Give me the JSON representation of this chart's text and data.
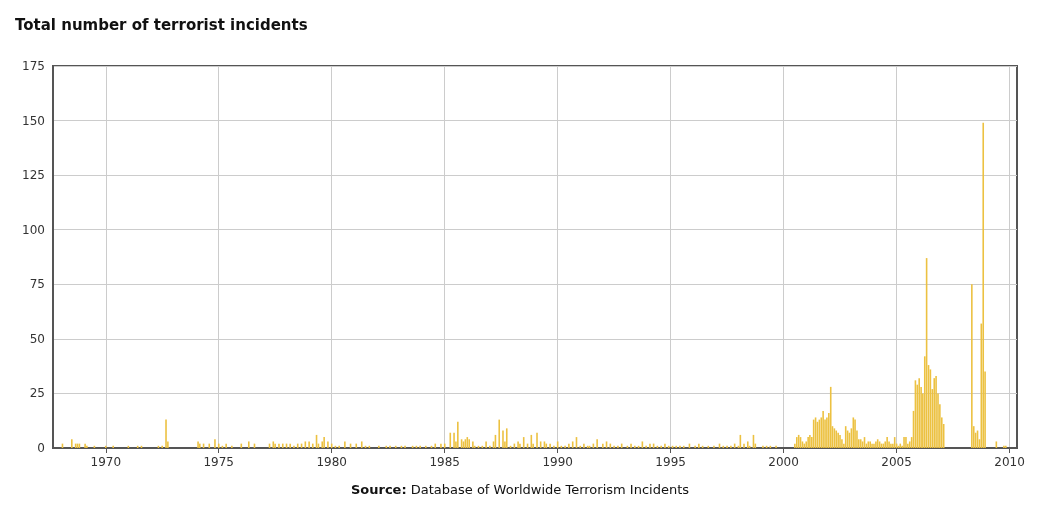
{
  "chart_data": {
    "type": "bar",
    "title": "Total number of terrorist incidents",
    "annotations": [
      "Source: Database of Worldwide Terrorism Incidents"
    ],
    "x": [
      "1968-02",
      "1968-07",
      "1968-09",
      "1968-10",
      "1968-11",
      "1969-02",
      "1969-03",
      "1969-07",
      "1970-01",
      "1970-05",
      "1971-01",
      "1971-06",
      "1971-08",
      "1972-05",
      "1972-07",
      "1972-09",
      "1972-10",
      "1974-02",
      "1974-03",
      "1974-05",
      "1974-08",
      "1974-11",
      "1975-01",
      "1975-03",
      "1975-05",
      "1975-08",
      "1976-01",
      "1976-05",
      "1976-08",
      "1977-04",
      "1977-06",
      "1977-07",
      "1977-09",
      "1977-11",
      "1978-01",
      "1978-03",
      "1978-05",
      "1978-07",
      "1978-09",
      "1978-11",
      "1979-01",
      "1979-03",
      "1979-05",
      "1979-06",
      "1979-08",
      "1979-09",
      "1979-11",
      "1980-01",
      "1980-03",
      "1980-05",
      "1980-08",
      "1980-11",
      "1981-02",
      "1981-05",
      "1981-07",
      "1981-09",
      "1982-02",
      "1982-06",
      "1982-08",
      "1982-11",
      "1983-02",
      "1983-04",
      "1983-08",
      "1983-10",
      "1983-12",
      "1984-03",
      "1984-06",
      "1984-08",
      "1984-11",
      "1985-01",
      "1985-04",
      "1985-06",
      "1985-07",
      "1985-08",
      "1985-10",
      "1985-11",
      "1985-12",
      "1986-01",
      "1986-02",
      "1986-04",
      "1986-05",
      "1986-07",
      "1986-09",
      "1986-11",
      "1987-01",
      "1987-03",
      "1987-04",
      "1987-06",
      "1987-08",
      "1987-09",
      "1987-10",
      "1987-12",
      "1988-02",
      "1988-04",
      "1988-05",
      "1988-07",
      "1988-09",
      "1988-11",
      "1988-12",
      "1989-02",
      "1989-04",
      "1989-06",
      "1989-07",
      "1989-09",
      "1989-11",
      "1990-01",
      "1990-03",
      "1990-05",
      "1990-07",
      "1990-09",
      "1990-11",
      "1991-01",
      "1991-03",
      "1991-05",
      "1991-06",
      "1991-08",
      "1991-10",
      "1992-01",
      "1992-03",
      "1992-05",
      "1992-07",
      "1992-09",
      "1992-11",
      "1993-02",
      "1993-04",
      "1993-06",
      "1993-08",
      "1993-10",
      "1993-12",
      "1994-02",
      "1994-04",
      "1994-06",
      "1994-08",
      "1994-10",
      "1994-12",
      "1995-02",
      "1995-04",
      "1995-06",
      "1995-08",
      "1995-11",
      "1996-02",
      "1996-04",
      "1996-06",
      "1996-09",
      "1996-12",
      "1997-03",
      "1997-05",
      "1997-07",
      "1997-09",
      "1997-11",
      "1998-01",
      "1998-02",
      "1998-04",
      "1998-06",
      "1998-07",
      "1998-09",
      "1998-10",
      "1999-02",
      "1999-04",
      "1999-06",
      "1999-09",
      "2000-07",
      "2000-08",
      "2000-09",
      "2000-10",
      "2000-11",
      "2000-12",
      "2001-01",
      "2001-02",
      "2001-03",
      "2001-04",
      "2001-05",
      "2001-06",
      "2001-07",
      "2001-08",
      "2001-09",
      "2001-10",
      "2001-11",
      "2001-12",
      "2002-01",
      "2002-02",
      "2002-03",
      "2002-04",
      "2002-05",
      "2002-06",
      "2002-07",
      "2002-08",
      "2002-09",
      "2002-10",
      "2002-11",
      "2002-12",
      "2003-01",
      "2003-02",
      "2003-03",
      "2003-04",
      "2003-05",
      "2003-06",
      "2003-07",
      "2003-08",
      "2003-09",
      "2003-10",
      "2003-11",
      "2003-12",
      "2004-01",
      "2004-02",
      "2004-03",
      "2004-04",
      "2004-05",
      "2004-06",
      "2004-07",
      "2004-08",
      "2004-09",
      "2004-10",
      "2004-11",
      "2004-12",
      "2005-01",
      "2005-02",
      "2005-03",
      "2005-04",
      "2005-05",
      "2005-06",
      "2005-07",
      "2005-08",
      "2005-09",
      "2005-10",
      "2005-11",
      "2005-12",
      "2006-01",
      "2006-02",
      "2006-03",
      "2006-04",
      "2006-05",
      "2006-06",
      "2006-07",
      "2006-08",
      "2006-09",
      "2006-10",
      "2006-11",
      "2006-12",
      "2007-01",
      "2007-02",
      "2008-05",
      "2008-06",
      "2008-07",
      "2008-08",
      "2008-09",
      "2008-10",
      "2008-11",
      "2008-12",
      "2009-06",
      "2009-10",
      "2009-11"
    ],
    "values": [
      2,
      4,
      2,
      2,
      2,
      2,
      1,
      1,
      1,
      1,
      1,
      1,
      1,
      1,
      1,
      13,
      3,
      3,
      2,
      2,
      2,
      4,
      2,
      1,
      2,
      1,
      2,
      3,
      2,
      2,
      3,
      2,
      2,
      2,
      2,
      2,
      1,
      2,
      2,
      3,
      3,
      2,
      6,
      2,
      3,
      5,
      3,
      2,
      1,
      1,
      3,
      2,
      2,
      3,
      1,
      1,
      1,
      1,
      1,
      1,
      1,
      1,
      1,
      1,
      1,
      1,
      1,
      2,
      2,
      2,
      7,
      7,
      3,
      12,
      4,
      3,
      4,
      5,
      4,
      3,
      1,
      1,
      1,
      3,
      1,
      3,
      6,
      13,
      8,
      3,
      9,
      1,
      2,
      3,
      2,
      5,
      2,
      6,
      2,
      7,
      3,
      3,
      2,
      2,
      1,
      3,
      1,
      1,
      2,
      3,
      5,
      1,
      2,
      1,
      1,
      2,
      4,
      2,
      3,
      2,
      1,
      1,
      2,
      1,
      2,
      1,
      1,
      3,
      1,
      2,
      2,
      1,
      1,
      2,
      1,
      1,
      1,
      1,
      1,
      2,
      1,
      2,
      1,
      1,
      1,
      2,
      1,
      1,
      1,
      2,
      1,
      6,
      2,
      3,
      1,
      6,
      2,
      1,
      1,
      1,
      1,
      2,
      5,
      6,
      5,
      3,
      2,
      3,
      5,
      6,
      5,
      13,
      14,
      12,
      13,
      14,
      17,
      13,
      14,
      16,
      28,
      10,
      9,
      8,
      7,
      6,
      4,
      2,
      10,
      8,
      7,
      9,
      14,
      13,
      8,
      4,
      4,
      3,
      5,
      2,
      3,
      3,
      2,
      2,
      3,
      4,
      3,
      2,
      2,
      3,
      5,
      3,
      2,
      2,
      5,
      2,
      1,
      2,
      1,
      5,
      5,
      2,
      3,
      5,
      17,
      31,
      29,
      32,
      28,
      25,
      42,
      87,
      38,
      36,
      27,
      32,
      33,
      25,
      20,
      14,
      11,
      75,
      10,
      7,
      8,
      4,
      57,
      149,
      35,
      3,
      1,
      1
    ],
    "color": "#ecc141",
    "xlim": [
      "1967-09",
      "2010-05"
    ],
    "xticks": [
      "1970",
      "1975",
      "1980",
      "1985",
      "1990",
      "1995",
      "2000",
      "2005",
      "2010"
    ],
    "ylim": [
      0,
      175
    ],
    "yticks": [
      0,
      25,
      50,
      75,
      100,
      125,
      150,
      175
    ],
    "grid": true
  }
}
